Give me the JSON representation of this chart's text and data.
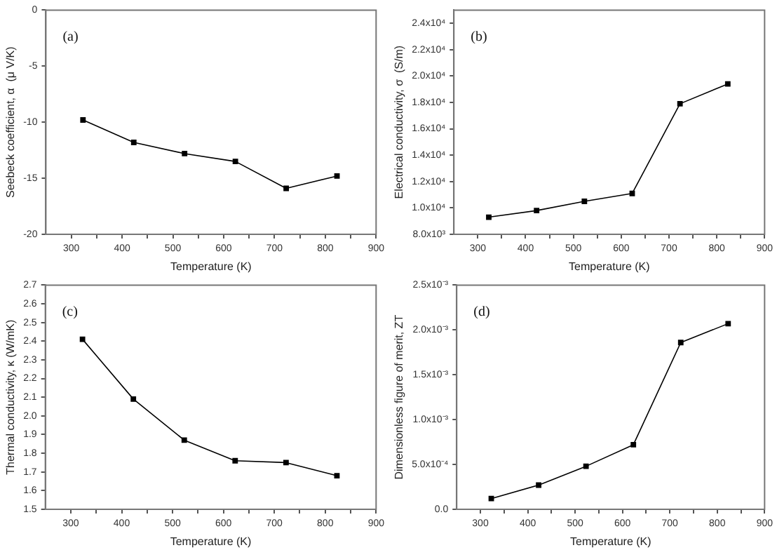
{
  "chart_data": [
    {
      "type": "line",
      "xlabel": "Temperature (K)",
      "ylabel": "Seebeck coefficient, α  (μ V/K)",
      "annotations": [
        "(a)"
      ],
      "marker": "square",
      "grid": false,
      "legend": false,
      "x": [
        323,
        423,
        523,
        623,
        723,
        823
      ],
      "xlim": [
        250,
        900
      ],
      "xticks": [
        300,
        {
          "value": 350,
          "label": null
        },
        400,
        {
          "value": 450,
          "label": null
        },
        500,
        {
          "value": 550,
          "label": null
        },
        600,
        {
          "value": 650,
          "label": null
        },
        700,
        {
          "value": 750,
          "label": null
        },
        800,
        {
          "value": 850,
          "label": null
        },
        900
      ],
      "ylim": [
        -20,
        0
      ],
      "yticks": [
        -20,
        -15,
        -10,
        -5,
        0
      ],
      "series": [
        {
          "color": "#000000",
          "values": [
            -9.8,
            -11.8,
            -12.8,
            -13.5,
            -15.9,
            -14.8
          ]
        }
      ]
    },
    {
      "type": "line",
      "xlabel": "Temperature (K)",
      "ylabel": "Electrical conductivity, σ  (S/m)",
      "annotations": [
        "(b)"
      ],
      "marker": "square",
      "grid": false,
      "legend": false,
      "x": [
        323,
        423,
        523,
        623,
        723,
        823
      ],
      "xlim": [
        250,
        900
      ],
      "xticks": [
        300,
        {
          "value": 350,
          "label": null
        },
        400,
        {
          "value": 450,
          "label": null
        },
        500,
        {
          "value": 550,
          "label": null
        },
        600,
        {
          "value": 650,
          "label": null
        },
        700,
        {
          "value": 750,
          "label": null
        },
        800,
        {
          "value": 850,
          "label": null
        },
        900
      ],
      "ylim": [
        8000,
        25000
      ],
      "yticks": [
        {
          "value": 8000,
          "label": "8.0x10³"
        },
        {
          "value": 10000,
          "label": "1.0x10⁴"
        },
        {
          "value": 12000,
          "label": "1.2x10⁴"
        },
        {
          "value": 14000,
          "label": "1.4x10⁴"
        },
        {
          "value": 16000,
          "label": "1.6x10⁴"
        },
        {
          "value": 18000,
          "label": "1.8x10⁴"
        },
        {
          "value": 20000,
          "label": "2.0x10⁴"
        },
        {
          "value": 22000,
          "label": "2.2x10⁴"
        },
        {
          "value": 24000,
          "label": "2.4x10⁴"
        }
      ],
      "series": [
        {
          "color": "#000000",
          "values": [
            9300,
            9800,
            10500,
            11100,
            17900,
            19400
          ]
        }
      ]
    },
    {
      "type": "line",
      "xlabel": "Temperature (K)",
      "ylabel": "Thermal conductivity, κ (W/mK)",
      "annotations": [
        "(c)"
      ],
      "marker": "square",
      "grid": false,
      "legend": false,
      "x": [
        323,
        423,
        523,
        623,
        723,
        823
      ],
      "xlim": [
        250,
        900
      ],
      "xticks": [
        300,
        {
          "value": 350,
          "label": null
        },
        400,
        {
          "value": 450,
          "label": null
        },
        500,
        {
          "value": 550,
          "label": null
        },
        600,
        {
          "value": 650,
          "label": null
        },
        700,
        {
          "value": 750,
          "label": null
        },
        800,
        {
          "value": 850,
          "label": null
        },
        900
      ],
      "ylim": [
        1.5,
        2.7
      ],
      "yticks": [
        1.5,
        1.6,
        1.7,
        1.8,
        1.9,
        {
          "value": 2.0,
          "label": "2.0"
        },
        2.1,
        2.2,
        2.3,
        2.4,
        2.5,
        2.6,
        2.7
      ],
      "series": [
        {
          "color": "#000000",
          "values": [
            2.41,
            2.09,
            1.87,
            1.76,
            1.75,
            1.68
          ]
        }
      ]
    },
    {
      "type": "line",
      "xlabel": "Temperature (K)",
      "ylabel": "Dimensionless figure of merit, ZT",
      "annotations": [
        "(d)"
      ],
      "marker": "square",
      "grid": false,
      "legend": false,
      "x": [
        323,
        423,
        523,
        623,
        723,
        823
      ],
      "xlim": [
        250,
        900
      ],
      "xticks": [
        300,
        {
          "value": 350,
          "label": null
        },
        400,
        {
          "value": 450,
          "label": null
        },
        500,
        {
          "value": 550,
          "label": null
        },
        600,
        {
          "value": 650,
          "label": null
        },
        700,
        {
          "value": 750,
          "label": null
        },
        800,
        {
          "value": 850,
          "label": null
        },
        900
      ],
      "ylim": [
        0,
        0.0025
      ],
      "yticks": [
        {
          "value": 0,
          "label": "0.0"
        },
        {
          "value": 0.0005,
          "label": "5.0x10⁻⁴"
        },
        {
          "value": 0.001,
          "label": "1.0x10⁻³"
        },
        {
          "value": 0.0015,
          "label": "1.5x10⁻³"
        },
        {
          "value": 0.002,
          "label": "2.0x10⁻³"
        },
        {
          "value": 0.0025,
          "label": "2.5x10⁻³"
        }
      ],
      "series": [
        {
          "color": "#000000",
          "values": [
            0.00012,
            0.00027,
            0.00048,
            0.00072,
            0.00186,
            0.00207
          ]
        }
      ]
    }
  ]
}
